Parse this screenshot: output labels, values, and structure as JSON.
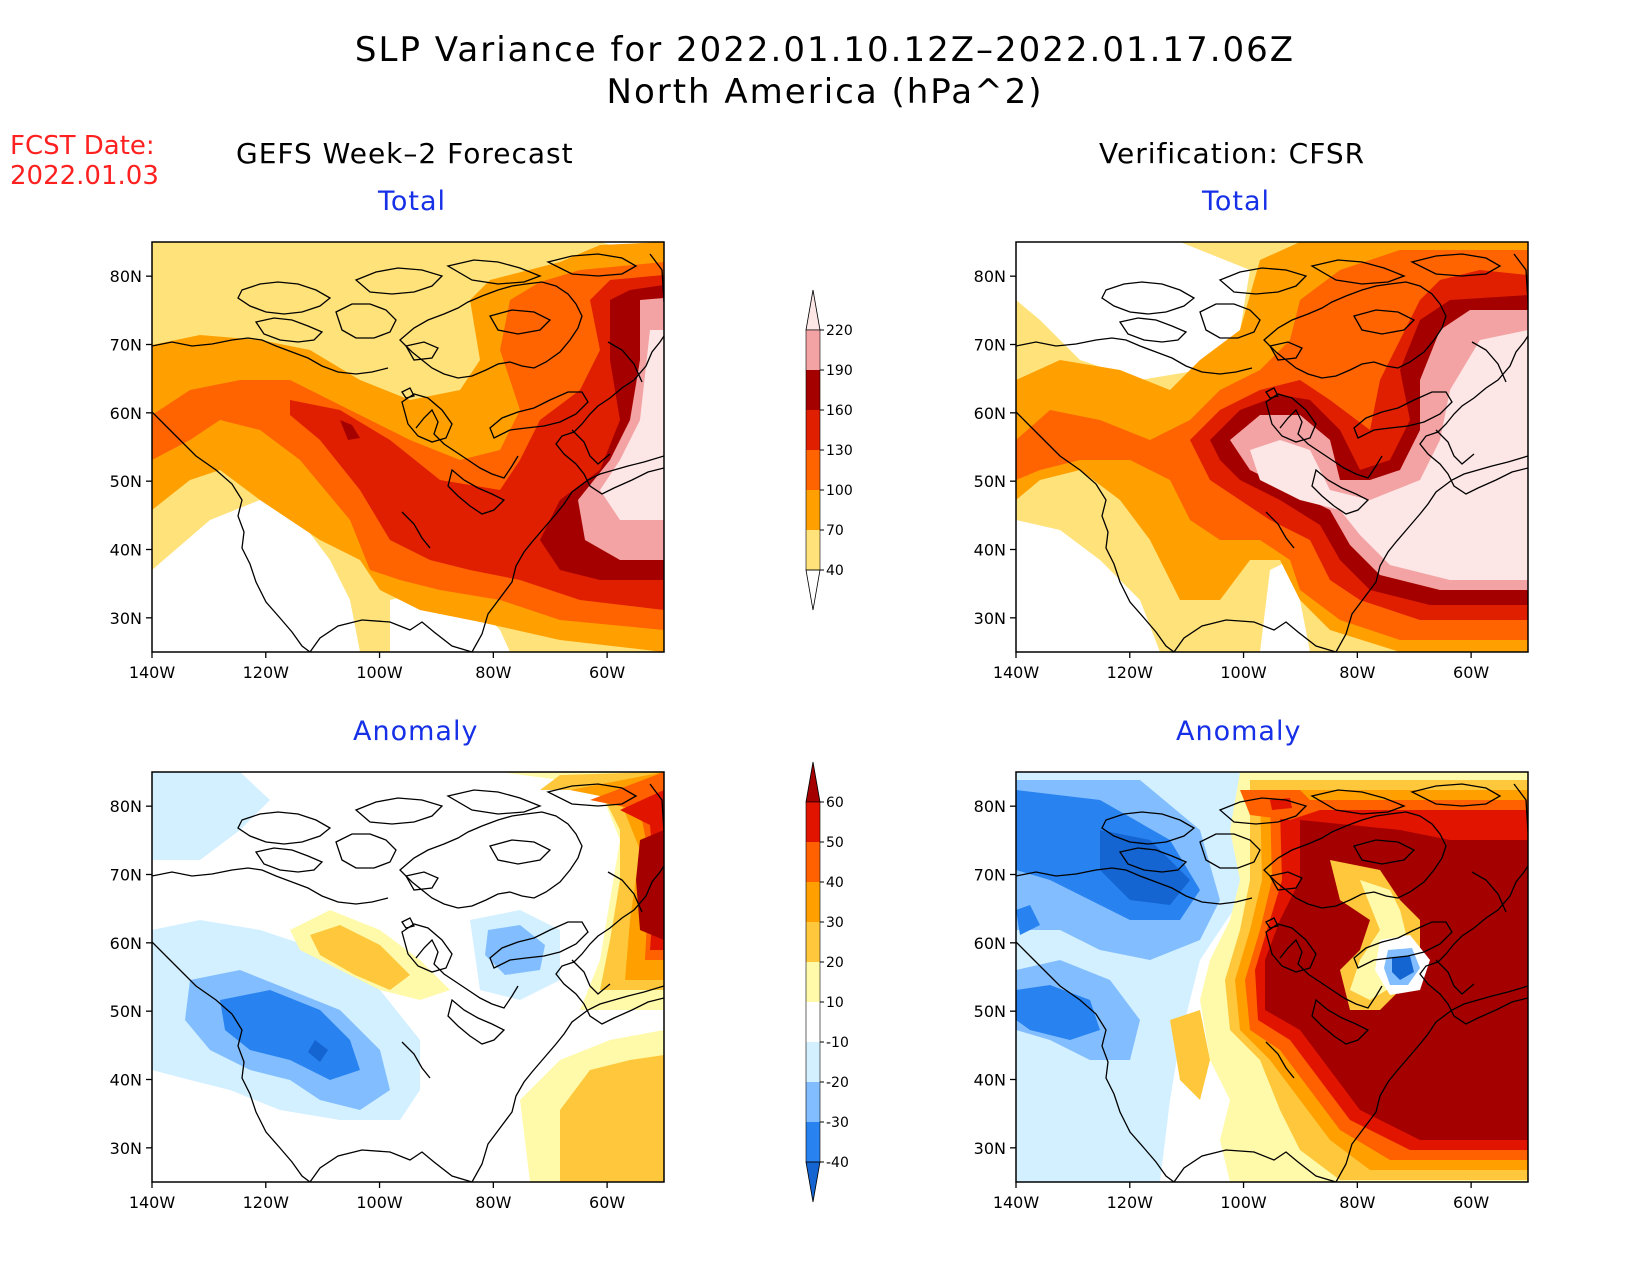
{
  "title_line1": "SLP Variance for 2022.01.10.12Z–2022.01.17.06Z",
  "title_line2": "North America (hPa^2)",
  "fcst_label": "FCST Date:",
  "fcst_date": "2022.01.03",
  "col_left": "GEFS Week–2 Forecast",
  "col_right": "Verification: CFSR",
  "panel_tl_title": "Total",
  "panel_tr_title": "Total",
  "panel_bl_title": "Anomaly",
  "panel_br_title": "Anomaly",
  "lon_ticks": [
    "140W",
    "120W",
    "100W",
    "80W",
    "60W"
  ],
  "lat_ticks": [
    "80N",
    "70N",
    "60N",
    "50N",
    "40N",
    "30N"
  ],
  "map_extent": {
    "lon": [
      -140,
      -50
    ],
    "lat": [
      25,
      85
    ]
  },
  "total_scale": {
    "labels": [
      "40",
      "70",
      "100",
      "130",
      "160",
      "190",
      "220"
    ],
    "colors": [
      "#ffffff",
      "#ffe27a",
      "#ffa000",
      "#ff6400",
      "#e01e00",
      "#a50000",
      "#f3a3a3",
      "#fde6e6"
    ]
  },
  "anomaly_scale": {
    "labels": [
      "-40",
      "-30",
      "-20",
      "-10",
      "10",
      "20",
      "30",
      "40",
      "50",
      "60"
    ],
    "colors": [
      "#1464d2",
      "#2882f0",
      "#82beff",
      "#d2f0ff",
      "#ffffff",
      "#fffaaa",
      "#ffc83c",
      "#ffa000",
      "#ff6000",
      "#e11400",
      "#a50000"
    ]
  }
}
